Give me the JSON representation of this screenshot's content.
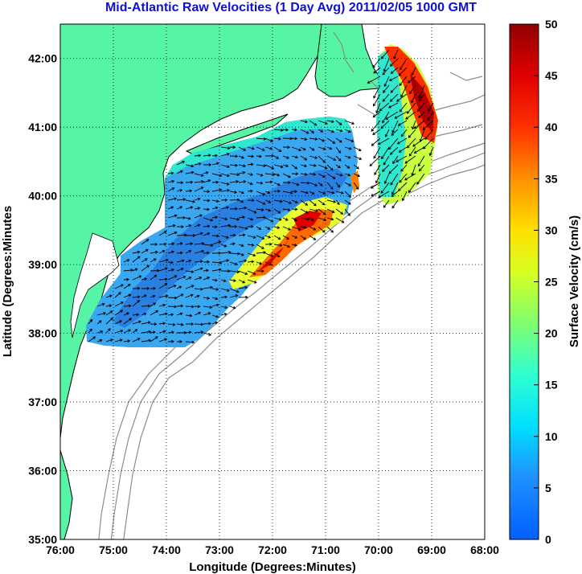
{
  "title": "Mid-Atlantic Raw Velocities (1 Day Avg) 2011/02/05 1000 GMT",
  "map": {
    "xlabel": "Longitude (Degrees:Minutes)",
    "ylabel": "Latitude (Degrees:Minutes",
    "lon_range": [
      -76,
      -68
    ],
    "lat_range": [
      35,
      42.5
    ],
    "lon_ticks": [
      "76:00",
      "75:00",
      "74:00",
      "73:00",
      "72:00",
      "71:00",
      "70:00",
      "69:00",
      "68:00"
    ],
    "lat_ticks": [
      "35:00",
      "36:00",
      "37:00",
      "38:00",
      "39:00",
      "40:00",
      "41:00",
      "42:00"
    ],
    "grid": "dotted",
    "land_color": "#55f5a5",
    "coast_color": "#000000",
    "bathymetry_color": "#8c8c8c"
  },
  "colorbar": {
    "label": "Surface Velocity (cm/s)",
    "range": [
      0,
      50
    ],
    "ticks": [
      "0",
      "5",
      "10",
      "15",
      "20",
      "25",
      "30",
      "35",
      "40",
      "45",
      "50"
    ],
    "colormap": "jet"
  }
}
